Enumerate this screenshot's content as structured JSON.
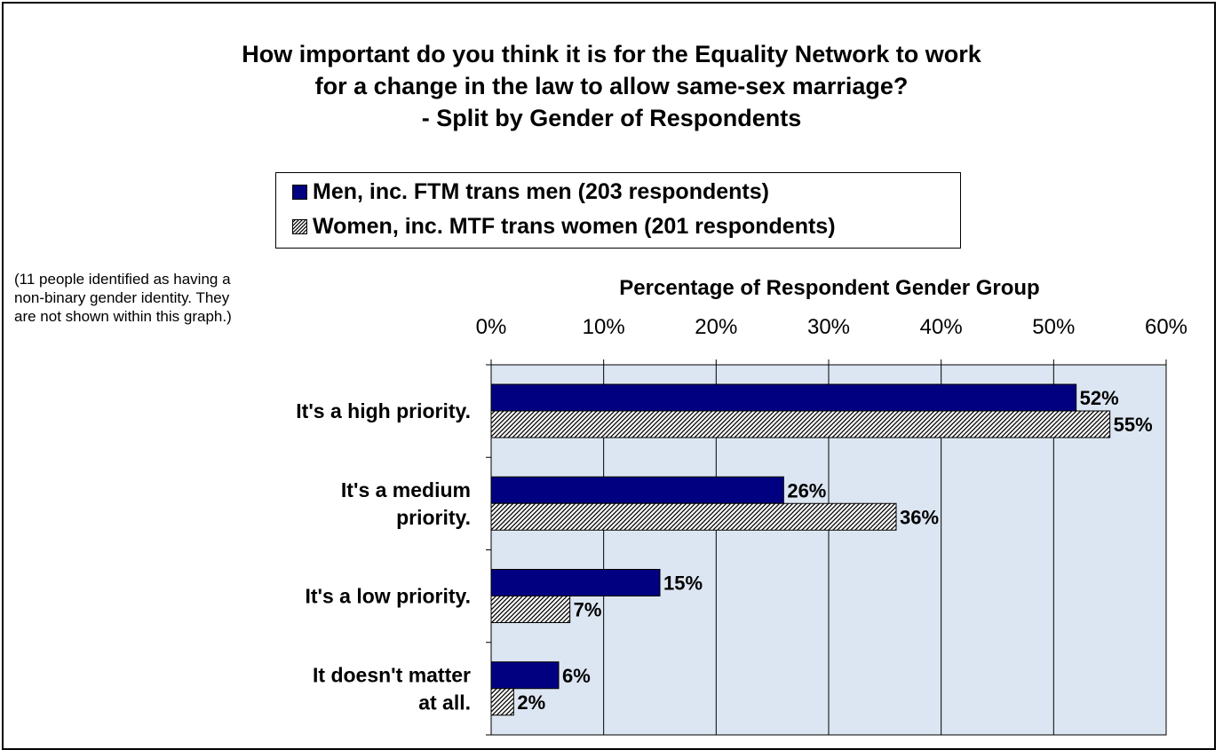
{
  "chart_data": {
    "type": "bar",
    "orientation": "horizontal",
    "title_lines": [
      "How important do you think it is for the Equality Network to work",
      "for a change in the law to allow same-sex marriage?",
      "- Split by Gender of Respondents"
    ],
    "xlabel": "Percentage of Respondent Gender Group",
    "xlim": [
      0,
      60
    ],
    "xticks": [
      "0%",
      "10%",
      "20%",
      "30%",
      "40%",
      "50%",
      "60%"
    ],
    "categories": [
      [
        "It's a high priority."
      ],
      [
        "It's a medium",
        "priority."
      ],
      [
        "It's a low priority."
      ],
      [
        "It doesn't matter",
        "at all."
      ]
    ],
    "series": [
      {
        "name": "Men, inc. FTM trans men (203 respondents)",
        "values": [
          52,
          26,
          15,
          6
        ],
        "labels": [
          "52%",
          "26%",
          "15%",
          "6%"
        ],
        "color": "#000080",
        "pattern": "solid"
      },
      {
        "name": "Women, inc. MTF trans women (201 respondents)",
        "values": [
          55,
          36,
          7,
          2
        ],
        "labels": [
          "55%",
          "36%",
          "7%",
          "2%"
        ],
        "color": "#ffffff",
        "pattern": "diagonal-hatch"
      }
    ],
    "grid": true,
    "plot_background": "#dce6f2",
    "legend_position": "top",
    "note_lines": [
      "(11 people identified as having a",
      "non-binary gender identity. They",
      "are not shown within this graph.)"
    ]
  }
}
